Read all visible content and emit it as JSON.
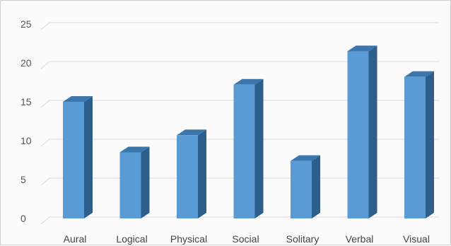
{
  "chart_data": {
    "type": "bar",
    "style": "3d-column",
    "categories": [
      "Aural",
      "Logical",
      "Physical",
      "Social",
      "Solitary",
      "Verbal",
      "Visual"
    ],
    "values": [
      15,
      8.5,
      10.7,
      17.2,
      7.4,
      21.5,
      18.2
    ],
    "ylim": [
      0,
      25
    ],
    "yticks": [
      "0",
      "5",
      "10",
      "15",
      "20",
      "25"
    ],
    "title": "",
    "xlabel": "",
    "ylabel": "",
    "grid": true,
    "legend": "none",
    "colors": {
      "bar_front": "#5b9bd5",
      "bar_side": "#2e5f8c",
      "bar_top": "#3b77ad",
      "gridline": "#d9d9d9",
      "axis_text": "#555555"
    }
  }
}
